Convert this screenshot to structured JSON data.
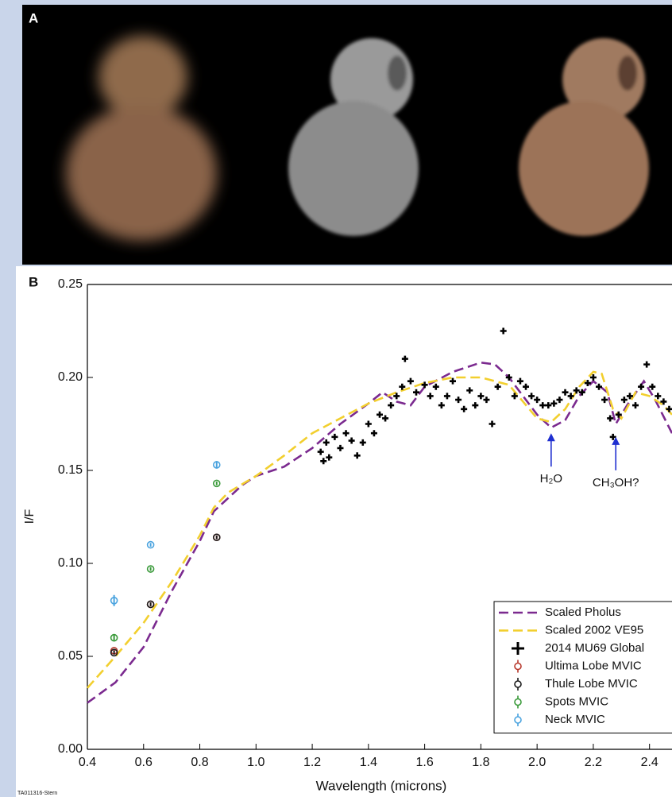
{
  "panel_a_label": "A",
  "panel_b_label": "B",
  "footnote": "TA011316-Stern",
  "chart_data": {
    "type": "line",
    "xlabel": "Wavelength (microns)",
    "ylabel": "I/F",
    "xlim": [
      0.4,
      2.48
    ],
    "ylim": [
      0,
      0.25
    ],
    "xticks": [
      0.4,
      0.6,
      0.8,
      {
        "value": 1,
        "label": "1.0"
      },
      1.2,
      1.4,
      1.6,
      1.8,
      {
        "value": 2,
        "label": "2.0"
      },
      2.2,
      2.4
    ],
    "yticks": [
      {
        "value": 0,
        "label": "0.00"
      },
      0.05,
      {
        "value": 0.1,
        "label": "0.10"
      },
      0.15,
      {
        "value": 0.2,
        "label": "0.20"
      },
      0.25
    ],
    "legend": "lower right",
    "series": [
      {
        "name": "Scaled Pholus",
        "type": "line",
        "color": "#7b2a8f",
        "dashed": true,
        "x": [
          0.4,
          0.5,
          0.6,
          0.7,
          0.8,
          0.85,
          0.95,
          1.0,
          1.1,
          1.2,
          1.3,
          1.4,
          1.45,
          1.5,
          1.55,
          1.6,
          1.7,
          1.8,
          1.85,
          1.9,
          1.95,
          2.0,
          2.05,
          2.1,
          2.15,
          2.2,
          2.25,
          2.28,
          2.32,
          2.38,
          2.42,
          2.48
        ],
        "values": [
          0.025,
          0.036,
          0.055,
          0.085,
          0.112,
          0.128,
          0.142,
          0.147,
          0.152,
          0.162,
          0.175,
          0.186,
          0.192,
          0.187,
          0.185,
          0.195,
          0.203,
          0.208,
          0.207,
          0.2,
          0.19,
          0.18,
          0.173,
          0.177,
          0.19,
          0.198,
          0.192,
          0.175,
          0.185,
          0.198,
          0.188,
          0.17
        ]
      },
      {
        "name": "Scaled 2002 VE95",
        "type": "line",
        "color": "#f2cf2e",
        "dashed": true,
        "x": [
          0.4,
          0.5,
          0.6,
          0.7,
          0.8,
          0.85,
          0.9,
          1.0,
          1.1,
          1.2,
          1.3,
          1.4,
          1.5,
          1.6,
          1.7,
          1.8,
          1.9,
          1.95,
          2.0,
          2.05,
          2.1,
          2.15,
          2.2,
          2.23,
          2.27,
          2.3,
          2.35,
          2.4,
          2.45,
          2.48
        ],
        "values": [
          0.033,
          0.05,
          0.068,
          0.09,
          0.115,
          0.13,
          0.138,
          0.147,
          0.158,
          0.17,
          0.178,
          0.186,
          0.192,
          0.197,
          0.2,
          0.2,
          0.196,
          0.187,
          0.178,
          0.176,
          0.183,
          0.195,
          0.203,
          0.202,
          0.183,
          0.178,
          0.192,
          0.19,
          0.185,
          0.18
        ]
      },
      {
        "name": "2014 MU69 Global",
        "type": "cross",
        "color": "#000000",
        "x": [
          1.23,
          1.24,
          1.25,
          1.26,
          1.28,
          1.3,
          1.32,
          1.34,
          1.36,
          1.38,
          1.4,
          1.42,
          1.44,
          1.46,
          1.48,
          1.5,
          1.52,
          1.53,
          1.55,
          1.57,
          1.6,
          1.62,
          1.64,
          1.66,
          1.68,
          1.7,
          1.72,
          1.74,
          1.76,
          1.78,
          1.8,
          1.82,
          1.84,
          1.86,
          1.88,
          1.9,
          1.92,
          1.94,
          1.96,
          1.98,
          2.0,
          2.02,
          2.04,
          2.06,
          2.08,
          2.1,
          2.12,
          2.14,
          2.16,
          2.18,
          2.2,
          2.22,
          2.24,
          2.26,
          2.27,
          2.29,
          2.31,
          2.33,
          2.35,
          2.37,
          2.39,
          2.41,
          2.43,
          2.45,
          2.47
        ],
        "values": [
          0.16,
          0.155,
          0.165,
          0.157,
          0.168,
          0.162,
          0.17,
          0.166,
          0.158,
          0.165,
          0.175,
          0.17,
          0.18,
          0.178,
          0.185,
          0.19,
          0.195,
          0.21,
          0.198,
          0.192,
          0.196,
          0.19,
          0.195,
          0.185,
          0.19,
          0.198,
          0.188,
          0.183,
          0.193,
          0.185,
          0.19,
          0.188,
          0.175,
          0.195,
          0.225,
          0.2,
          0.19,
          0.198,
          0.195,
          0.19,
          0.188,
          0.185,
          0.185,
          0.186,
          0.188,
          0.192,
          0.19,
          0.193,
          0.192,
          0.197,
          0.2,
          0.195,
          0.188,
          0.178,
          0.168,
          0.18,
          0.188,
          0.19,
          0.185,
          0.195,
          0.207,
          0.195,
          0.19,
          0.187,
          0.183
        ]
      },
      {
        "name": "Ultima Lobe MVIC",
        "type": "errorpoint",
        "color": "#b7382c",
        "x": [
          0.495,
          0.625,
          0.86
        ],
        "values": [
          0.053,
          0.078,
          0.114
        ],
        "errors": [
          0.001,
          0.001,
          0.001
        ]
      },
      {
        "name": "Thule Lobe MVIC",
        "type": "errorpoint",
        "color": "#1a1a1a",
        "x": [
          0.495,
          0.625,
          0.86
        ],
        "values": [
          0.052,
          0.078,
          0.114
        ],
        "errors": [
          0.001,
          0.001,
          0.001
        ]
      },
      {
        "name": "Spots MVIC",
        "type": "errorpoint",
        "color": "#3a9a3a",
        "x": [
          0.495,
          0.625,
          0.86
        ],
        "values": [
          0.06,
          0.097,
          0.143
        ],
        "errors": [
          0.002,
          0.001,
          0.001
        ]
      },
      {
        "name": "Neck MVIC",
        "type": "errorpoint",
        "color": "#4aa3df",
        "x": [
          0.495,
          0.625,
          0.86
        ],
        "values": [
          0.08,
          0.11,
          0.153
        ],
        "errors": [
          0.003,
          0.001,
          0.002
        ]
      }
    ],
    "annotations": [
      {
        "text": "H₂O",
        "x": 2.05,
        "y": 0.17,
        "color": "#1f2fd0"
      },
      {
        "text": "CH₃OH?",
        "x": 2.28,
        "y": 0.168,
        "color": "#1f2fd0"
      }
    ]
  }
}
